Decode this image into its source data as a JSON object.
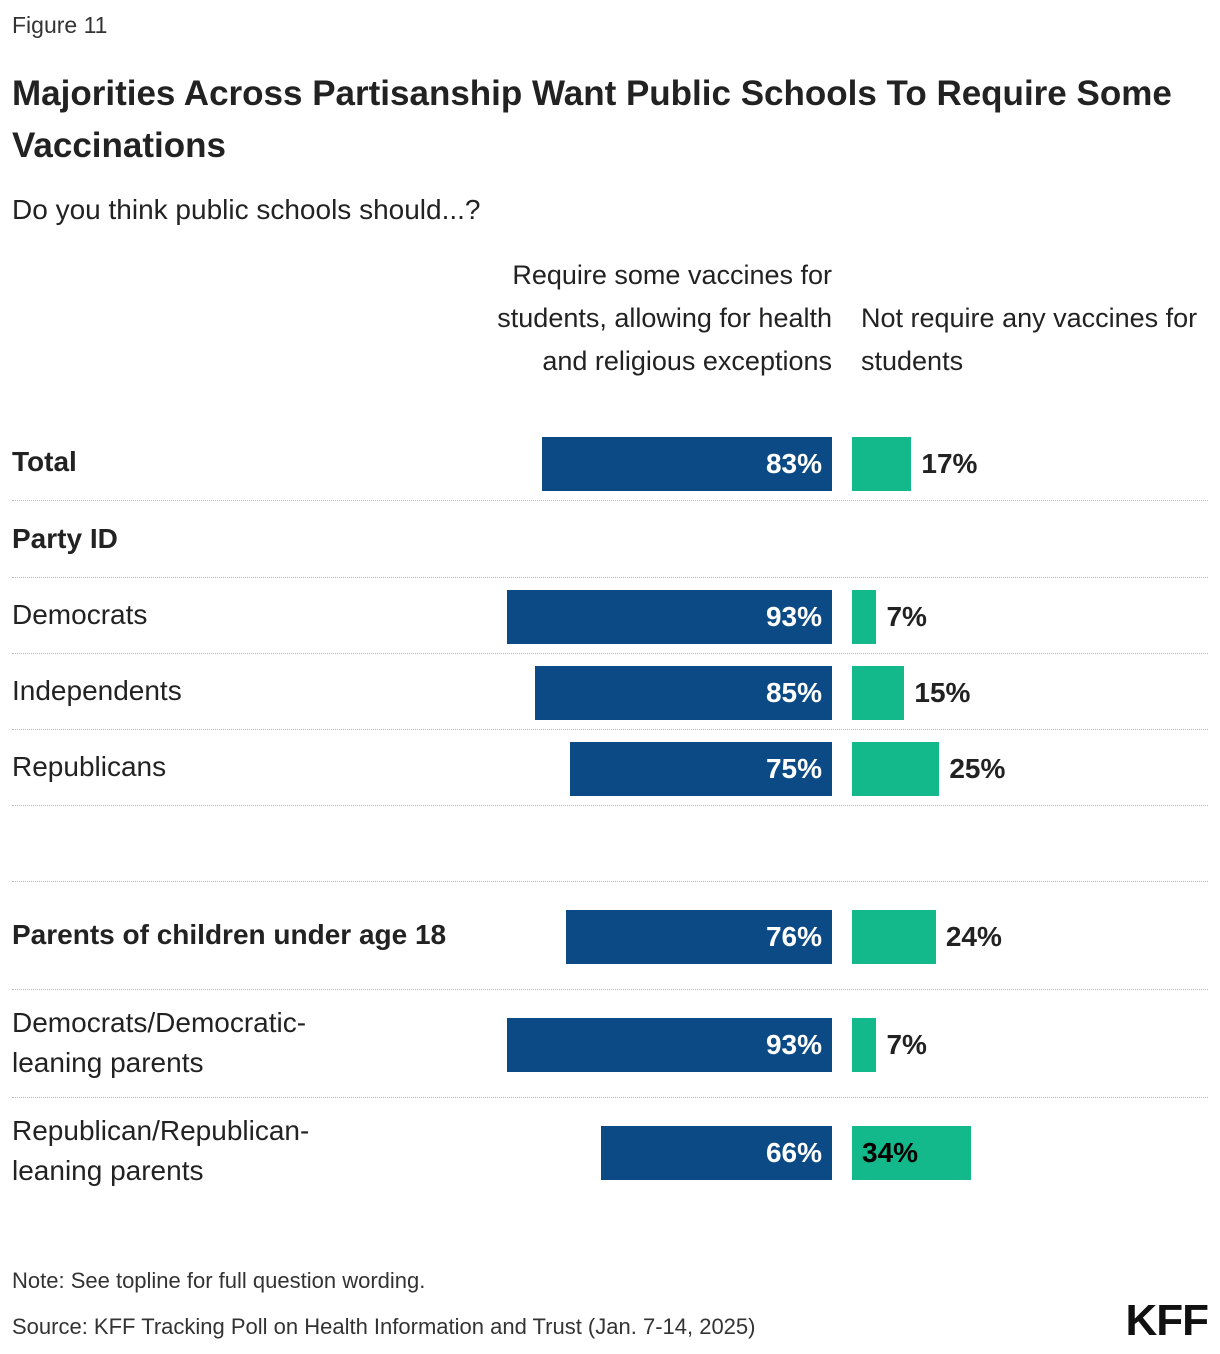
{
  "chart_data": {
    "type": "bar",
    "figure_label": "Figure 11",
    "title": "Majorities Across Partisanship Want Public Schools To Require Some Vaccinations",
    "subtitle": "Do you think public schools should...?",
    "categories": [
      "Total",
      "Party ID",
      "Democrats",
      "Independents",
      "Republicans",
      "Parents of children under age 18",
      "Democrats/Democratic-leaning parents",
      "Republican/Republican-leaning parents"
    ],
    "series": [
      {
        "name": "Require some vaccines for students, allowing for health and religious exceptions",
        "color": "#0b4a85",
        "values": [
          83,
          null,
          93,
          85,
          75,
          76,
          93,
          66
        ],
        "value_labels": [
          "83%",
          null,
          "93%",
          "85%",
          "75%",
          "76%",
          "93%",
          "66%"
        ]
      },
      {
        "name": "Not require any vaccines for students",
        "color": "#13b98a",
        "values": [
          17,
          null,
          7,
          15,
          25,
          24,
          7,
          34
        ],
        "value_labels": [
          "17%",
          null,
          "7%",
          "15%",
          "25%",
          "24%",
          "7%",
          "34%"
        ]
      }
    ],
    "note": "Note: See topline for full question wording.",
    "source": "Source: KFF Tracking Poll on Health Information and Trust (Jan. 7-14, 2025)",
    "logo": "KFF"
  }
}
